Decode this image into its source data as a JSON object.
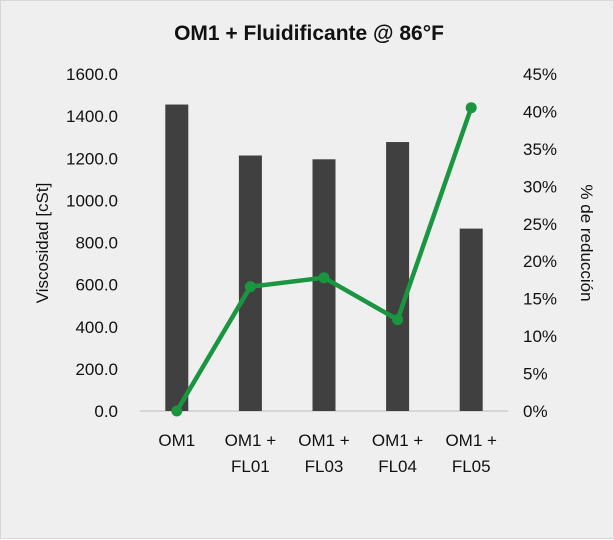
{
  "chart_data": {
    "type": "bar",
    "title": "OM1 + Fluidificante @ 86°F",
    "categories": [
      [
        "OM1"
      ],
      [
        "OM1 +",
        "FL01"
      ],
      [
        "OM1 +",
        "FL03"
      ],
      [
        "OM1 +",
        "FL04"
      ],
      [
        "OM1 +",
        "FL05"
      ]
    ],
    "series": [
      {
        "type": "bar",
        "axis": "left",
        "values": [
          1455,
          1213,
          1195,
          1277,
          866
        ],
        "color": "#404040"
      },
      {
        "type": "line",
        "axis": "right",
        "values": [
          0.0,
          16.6,
          17.8,
          12.2,
          40.5
        ],
        "color": "#1a9641"
      }
    ],
    "ylabel_left": "Viscosidad [cSt]",
    "ylabel_right": "% de reducción",
    "ylim_left": [
      0,
      1600
    ],
    "ylim_right": [
      0,
      45
    ],
    "yticks_left": [
      "0.0",
      "200.0",
      "400.0",
      "600.0",
      "800.0",
      "1000.0",
      "1200.0",
      "1400.0",
      "1600.0"
    ],
    "yticks_right": [
      "0%",
      "5%",
      "10%",
      "15%",
      "20%",
      "25%",
      "30%",
      "35%",
      "40%",
      "45%"
    ],
    "grid": false,
    "legend": "none",
    "background": "#efefef"
  }
}
